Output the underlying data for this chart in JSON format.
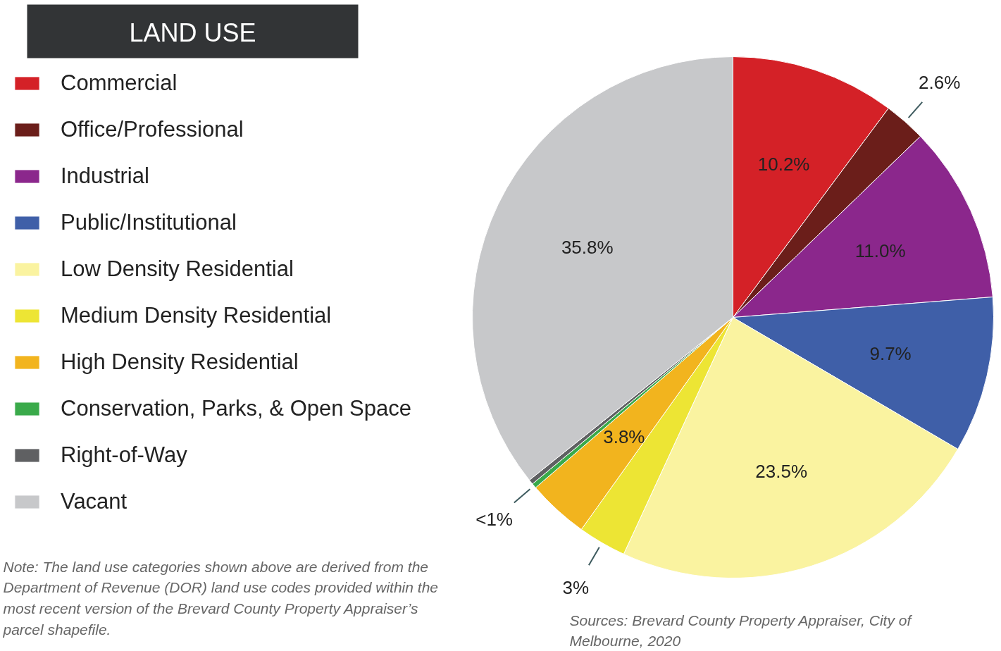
{
  "chart_data": {
    "type": "pie",
    "title": "LAND USE",
    "categories": [
      "Commercial",
      "Office/Professional",
      "Industrial",
      "Public/Institutional",
      "Low Density Residential",
      "Medium Density Residential",
      "High Density Residential",
      "Conservation, Parks, & Open Space",
      "Right-of-Way",
      "Vacant"
    ],
    "values": [
      10.2,
      2.6,
      11.0,
      9.7,
      23.5,
      3,
      3.8,
      0.3,
      0.3,
      35.8
    ],
    "colors": [
      "#d42127",
      "#6b1e1a",
      "#8b278c",
      "#3f5fa8",
      "#faf3a0",
      "#ede534",
      "#f2b41e",
      "#3aaa4a",
      "#5f6062",
      "#c7c8ca"
    ],
    "value_labels": [
      "10.2%",
      "2.6%",
      "11.0%",
      "9.7%",
      "23.5%",
      "3%",
      "3.8%",
      "<1%",
      null,
      "35.8%"
    ],
    "legend": "left",
    "annotations": [
      "Note: The land use categories shown above are derived from the Department of Revenue (DOR) land use codes provided within the most recent version of the Brevard County Property Appraiser’s parcel shapefile.",
      "Sources: Brevard County Property Appraiser, City of Melbourne, 2020"
    ]
  }
}
